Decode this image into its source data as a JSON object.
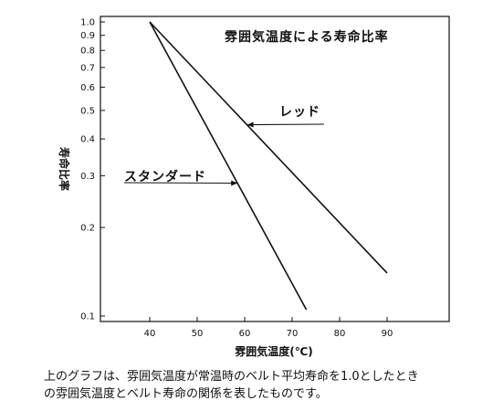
{
  "chart_data": {
    "type": "line",
    "title": "雰囲気温度による寿命比率",
    "xlabel": "雰囲気温度(℃)",
    "ylabel": "寿命比率",
    "xlim": [
      30,
      95
    ],
    "ylim": [
      0.1,
      1.0
    ],
    "yscale": "log",
    "x_ticks": [
      40,
      50,
      60,
      70,
      80,
      90
    ],
    "y_ticks": [
      1.0,
      0.9,
      0.8,
      0.7,
      0.6,
      0.5,
      0.4,
      0.3,
      0.2,
      0.1
    ],
    "y_tick_labels": [
      "1.0",
      "0.9",
      "0.8",
      "0.7",
      "0.6",
      "0.5",
      "0.4",
      "0.3",
      "0.2",
      "0.1"
    ],
    "grid": false,
    "series": [
      {
        "name": "レッド",
        "x": [
          40,
          90
        ],
        "y": [
          1.0,
          0.14
        ]
      },
      {
        "name": "スタンダード",
        "x": [
          40,
          73
        ],
        "y": [
          1.0,
          0.105
        ]
      }
    ],
    "annotations": [
      {
        "series": "レッド",
        "text": "レッド",
        "x": 60.5,
        "y": 0.447
      },
      {
        "series": "スタンダード",
        "text": "スタンダード",
        "x": 58.5,
        "y": 0.283
      }
    ],
    "colors": {
      "line": "#111111"
    }
  },
  "caption": {
    "line1": "上のグラフは、雰囲気温度が常温時のベルト平均寿命を1.0としたとき",
    "line2": "の雰囲気温度とベルト寿命の関係を表したものです。"
  }
}
